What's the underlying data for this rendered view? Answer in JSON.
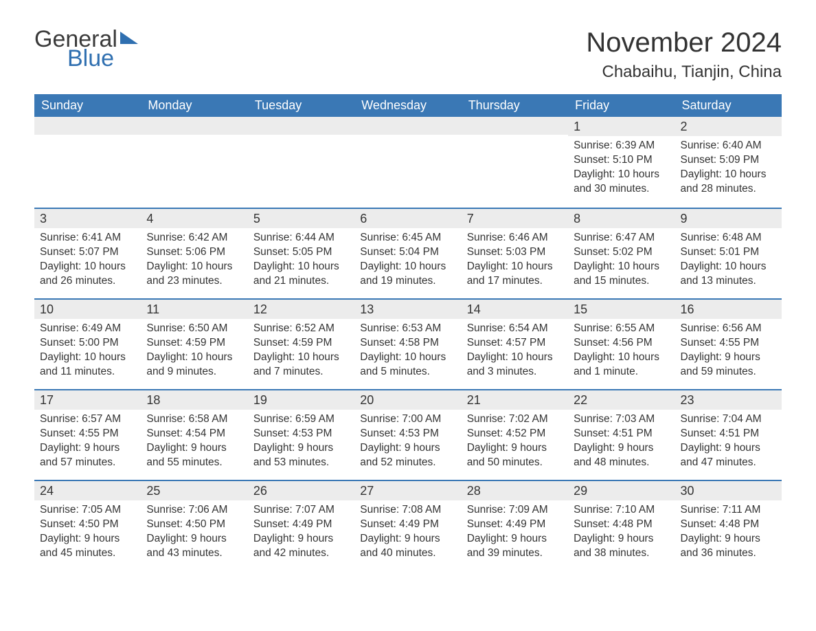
{
  "brand": {
    "part1": "General",
    "part2": "Blue"
  },
  "title": "November 2024",
  "subtitle": "Chabaihu, Tianjin, China",
  "colors": {
    "header_bg": "#3a78b5",
    "header_text": "#ffffff",
    "daynum_bg": "#ececec",
    "week_border": "#3a78b5",
    "body_text": "#333333",
    "logo_blue": "#2f6fb0",
    "page_bg": "#ffffff"
  },
  "fontsize": {
    "title": 40,
    "subtitle": 24,
    "weekday": 18,
    "daynum": 18,
    "body": 15.5,
    "logo": 34
  },
  "weekdays": [
    "Sunday",
    "Monday",
    "Tuesday",
    "Wednesday",
    "Thursday",
    "Friday",
    "Saturday"
  ],
  "weeks": [
    [
      null,
      null,
      null,
      null,
      null,
      {
        "n": "1",
        "sr": "Sunrise: 6:39 AM",
        "ss": "Sunset: 5:10 PM",
        "d1": "Daylight: 10 hours",
        "d2": "and 30 minutes."
      },
      {
        "n": "2",
        "sr": "Sunrise: 6:40 AM",
        "ss": "Sunset: 5:09 PM",
        "d1": "Daylight: 10 hours",
        "d2": "and 28 minutes."
      }
    ],
    [
      {
        "n": "3",
        "sr": "Sunrise: 6:41 AM",
        "ss": "Sunset: 5:07 PM",
        "d1": "Daylight: 10 hours",
        "d2": "and 26 minutes."
      },
      {
        "n": "4",
        "sr": "Sunrise: 6:42 AM",
        "ss": "Sunset: 5:06 PM",
        "d1": "Daylight: 10 hours",
        "d2": "and 23 minutes."
      },
      {
        "n": "5",
        "sr": "Sunrise: 6:44 AM",
        "ss": "Sunset: 5:05 PM",
        "d1": "Daylight: 10 hours",
        "d2": "and 21 minutes."
      },
      {
        "n": "6",
        "sr": "Sunrise: 6:45 AM",
        "ss": "Sunset: 5:04 PM",
        "d1": "Daylight: 10 hours",
        "d2": "and 19 minutes."
      },
      {
        "n": "7",
        "sr": "Sunrise: 6:46 AM",
        "ss": "Sunset: 5:03 PM",
        "d1": "Daylight: 10 hours",
        "d2": "and 17 minutes."
      },
      {
        "n": "8",
        "sr": "Sunrise: 6:47 AM",
        "ss": "Sunset: 5:02 PM",
        "d1": "Daylight: 10 hours",
        "d2": "and 15 minutes."
      },
      {
        "n": "9",
        "sr": "Sunrise: 6:48 AM",
        "ss": "Sunset: 5:01 PM",
        "d1": "Daylight: 10 hours",
        "d2": "and 13 minutes."
      }
    ],
    [
      {
        "n": "10",
        "sr": "Sunrise: 6:49 AM",
        "ss": "Sunset: 5:00 PM",
        "d1": "Daylight: 10 hours",
        "d2": "and 11 minutes."
      },
      {
        "n": "11",
        "sr": "Sunrise: 6:50 AM",
        "ss": "Sunset: 4:59 PM",
        "d1": "Daylight: 10 hours",
        "d2": "and 9 minutes."
      },
      {
        "n": "12",
        "sr": "Sunrise: 6:52 AM",
        "ss": "Sunset: 4:59 PM",
        "d1": "Daylight: 10 hours",
        "d2": "and 7 minutes."
      },
      {
        "n": "13",
        "sr": "Sunrise: 6:53 AM",
        "ss": "Sunset: 4:58 PM",
        "d1": "Daylight: 10 hours",
        "d2": "and 5 minutes."
      },
      {
        "n": "14",
        "sr": "Sunrise: 6:54 AM",
        "ss": "Sunset: 4:57 PM",
        "d1": "Daylight: 10 hours",
        "d2": "and 3 minutes."
      },
      {
        "n": "15",
        "sr": "Sunrise: 6:55 AM",
        "ss": "Sunset: 4:56 PM",
        "d1": "Daylight: 10 hours",
        "d2": "and 1 minute."
      },
      {
        "n": "16",
        "sr": "Sunrise: 6:56 AM",
        "ss": "Sunset: 4:55 PM",
        "d1": "Daylight: 9 hours",
        "d2": "and 59 minutes."
      }
    ],
    [
      {
        "n": "17",
        "sr": "Sunrise: 6:57 AM",
        "ss": "Sunset: 4:55 PM",
        "d1": "Daylight: 9 hours",
        "d2": "and 57 minutes."
      },
      {
        "n": "18",
        "sr": "Sunrise: 6:58 AM",
        "ss": "Sunset: 4:54 PM",
        "d1": "Daylight: 9 hours",
        "d2": "and 55 minutes."
      },
      {
        "n": "19",
        "sr": "Sunrise: 6:59 AM",
        "ss": "Sunset: 4:53 PM",
        "d1": "Daylight: 9 hours",
        "d2": "and 53 minutes."
      },
      {
        "n": "20",
        "sr": "Sunrise: 7:00 AM",
        "ss": "Sunset: 4:53 PM",
        "d1": "Daylight: 9 hours",
        "d2": "and 52 minutes."
      },
      {
        "n": "21",
        "sr": "Sunrise: 7:02 AM",
        "ss": "Sunset: 4:52 PM",
        "d1": "Daylight: 9 hours",
        "d2": "and 50 minutes."
      },
      {
        "n": "22",
        "sr": "Sunrise: 7:03 AM",
        "ss": "Sunset: 4:51 PM",
        "d1": "Daylight: 9 hours",
        "d2": "and 48 minutes."
      },
      {
        "n": "23",
        "sr": "Sunrise: 7:04 AM",
        "ss": "Sunset: 4:51 PM",
        "d1": "Daylight: 9 hours",
        "d2": "and 47 minutes."
      }
    ],
    [
      {
        "n": "24",
        "sr": "Sunrise: 7:05 AM",
        "ss": "Sunset: 4:50 PM",
        "d1": "Daylight: 9 hours",
        "d2": "and 45 minutes."
      },
      {
        "n": "25",
        "sr": "Sunrise: 7:06 AM",
        "ss": "Sunset: 4:50 PM",
        "d1": "Daylight: 9 hours",
        "d2": "and 43 minutes."
      },
      {
        "n": "26",
        "sr": "Sunrise: 7:07 AM",
        "ss": "Sunset: 4:49 PM",
        "d1": "Daylight: 9 hours",
        "d2": "and 42 minutes."
      },
      {
        "n": "27",
        "sr": "Sunrise: 7:08 AM",
        "ss": "Sunset: 4:49 PM",
        "d1": "Daylight: 9 hours",
        "d2": "and 40 minutes."
      },
      {
        "n": "28",
        "sr": "Sunrise: 7:09 AM",
        "ss": "Sunset: 4:49 PM",
        "d1": "Daylight: 9 hours",
        "d2": "and 39 minutes."
      },
      {
        "n": "29",
        "sr": "Sunrise: 7:10 AM",
        "ss": "Sunset: 4:48 PM",
        "d1": "Daylight: 9 hours",
        "d2": "and 38 minutes."
      },
      {
        "n": "30",
        "sr": "Sunrise: 7:11 AM",
        "ss": "Sunset: 4:48 PM",
        "d1": "Daylight: 9 hours",
        "d2": "and 36 minutes."
      }
    ]
  ]
}
